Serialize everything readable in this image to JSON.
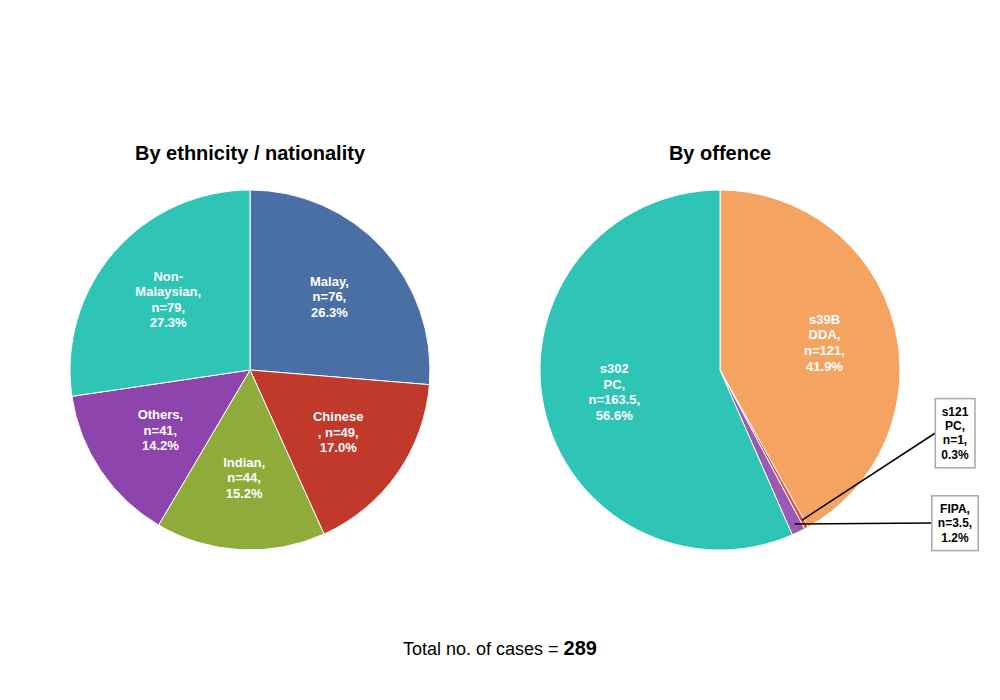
{
  "chart_data": [
    {
      "type": "pie",
      "title": "By ethnicity / nationality",
      "categories": [
        "Malay,\nn=76,\n26.3%",
        "Chinese\n, n=49,\n17.0%",
        "Indian,\nn=44,\n15.2%",
        "Others,\nn=41,\n14.2%",
        "Non-\nMalaysian,\nn=79,\n27.3%"
      ],
      "values": [
        76,
        49,
        44,
        41,
        79
      ],
      "colors": [
        "#4a6fa5",
        "#c0392b",
        "#8fac3a",
        "#8e44ad",
        "#2ec4b6"
      ]
    },
    {
      "type": "pie",
      "title": "By offence",
      "categories": [
        "s39B\nDDA,\nn=121,\n41.9%",
        "s121\nPC,\nn=1,\n0.3%",
        "FIPA,\nn=3.5,\n1.2%",
        "s302\nPC,\nn=163.5,\n56.6%"
      ],
      "values": [
        121,
        1,
        3.5,
        163.5
      ],
      "colors": [
        "#f4a460",
        "#e74c3c",
        "#9b59b6",
        "#2ec4b6"
      ],
      "annotations": [
        "Total no. of cases = ",
        "289"
      ]
    }
  ]
}
